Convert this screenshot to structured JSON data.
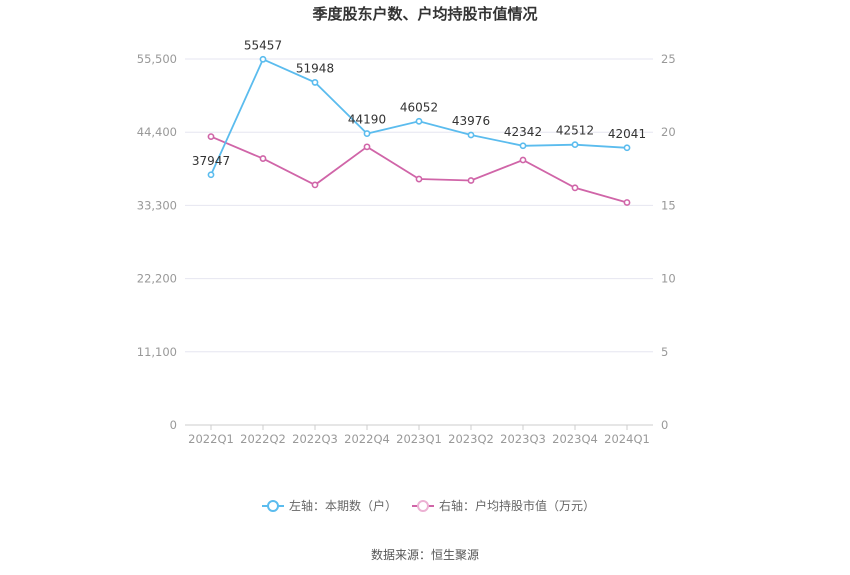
{
  "chart_data": {
    "type": "line",
    "title": "季度股东户数、户均持股市值情况",
    "categories": [
      "2022Q1",
      "2022Q2",
      "2022Q3",
      "2022Q4",
      "2023Q1",
      "2023Q2",
      "2023Q3",
      "2023Q4",
      "2024Q1"
    ],
    "left_axis": {
      "min": 0,
      "max": 55500,
      "ticks": [
        0,
        11100,
        22200,
        33300,
        44400,
        55500
      ],
      "tick_labels": [
        "0",
        "11,100",
        "22,200",
        "33,300",
        "44,400",
        "55,500"
      ]
    },
    "right_axis": {
      "min": 0,
      "max": 25,
      "ticks": [
        0,
        5,
        10,
        15,
        20,
        25
      ],
      "tick_labels": [
        "0",
        "5",
        "10",
        "15",
        "20",
        "25"
      ]
    },
    "series": [
      {
        "name": "左轴：本期数（户）",
        "axis": "left",
        "color": "#5bbcee",
        "values": [
          37947,
          55457,
          51948,
          44190,
          46052,
          43976,
          42342,
          42512,
          42041
        ],
        "labels": [
          "37947",
          "55457",
          "51948",
          "44190",
          "46052",
          "43976",
          "42342",
          "42512",
          "42041"
        ]
      },
      {
        "name": "右轴：户均持股市值（万元）",
        "axis": "right",
        "color": "#d065a8",
        "values": [
          19.7,
          18.2,
          16.4,
          19.0,
          16.8,
          16.7,
          18.1,
          16.2,
          15.2
        ]
      }
    ],
    "grid": true,
    "legend_position": "bottom"
  },
  "source": "数据来源：恒生聚源"
}
